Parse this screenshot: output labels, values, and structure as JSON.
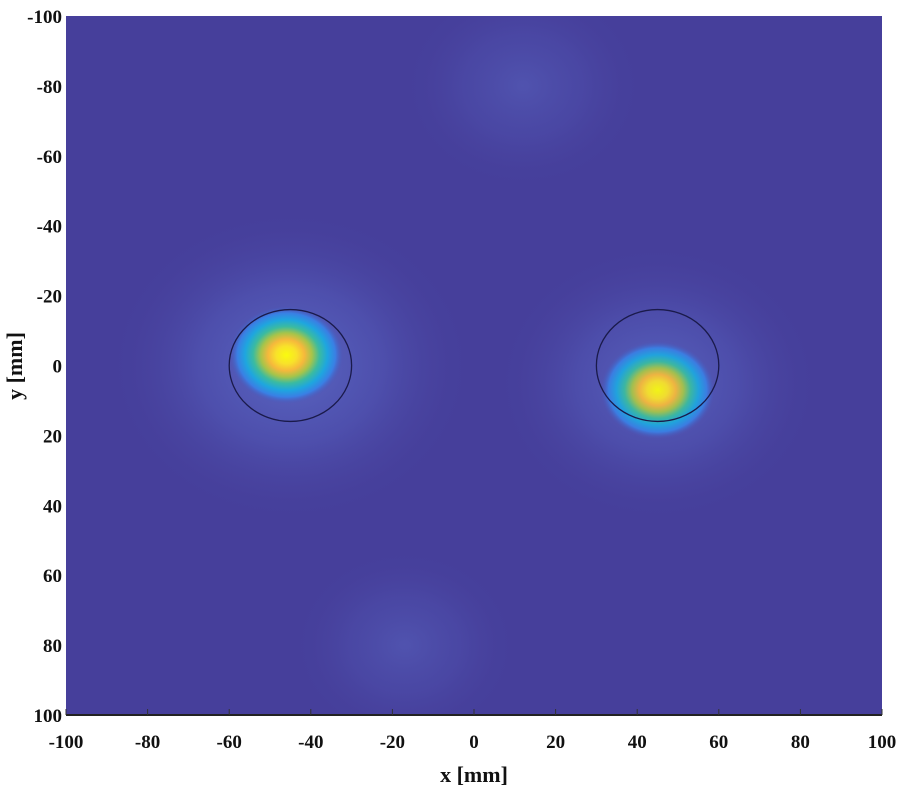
{
  "chart_data": {
    "type": "heatmap",
    "title": "",
    "xlabel": "x [mm]",
    "ylabel": "y [mm]",
    "xlim": [
      -100,
      100
    ],
    "ylim": [
      -100,
      100
    ],
    "y_axis_direction": "reversed (top = -100)",
    "xticks": [
      "-100",
      "-80",
      "-60",
      "-40",
      "-20",
      "0",
      "20",
      "40",
      "60",
      "80",
      "100"
    ],
    "yticks": [
      "-100",
      "-80",
      "-60",
      "-40",
      "-20",
      "0",
      "20",
      "40",
      "60",
      "80",
      "100"
    ],
    "colormap": "parula",
    "grid": false,
    "background_color": "#463f9b",
    "hotspots": [
      {
        "x": -46,
        "y": -3,
        "intensity": 1.0
      },
      {
        "x": 45,
        "y": 7,
        "intensity": 0.95
      }
    ],
    "diffuse_regions": [
      {
        "x": -45,
        "y": 0,
        "spread": 45,
        "intensity": 0.25
      },
      {
        "x": 45,
        "y": 5,
        "spread": 40,
        "intensity": 0.22
      },
      {
        "x": 12,
        "y": -80,
        "spread": 30,
        "intensity": 0.12
      },
      {
        "x": -17,
        "y": 80,
        "spread": 28,
        "intensity": 0.12
      }
    ],
    "circles": [
      {
        "cx": -45,
        "cy": 0,
        "r": 15,
        "color": "#1a1a4a"
      },
      {
        "cx": 45,
        "cy": 0,
        "r": 15,
        "color": "#1a1a4a"
      }
    ]
  }
}
